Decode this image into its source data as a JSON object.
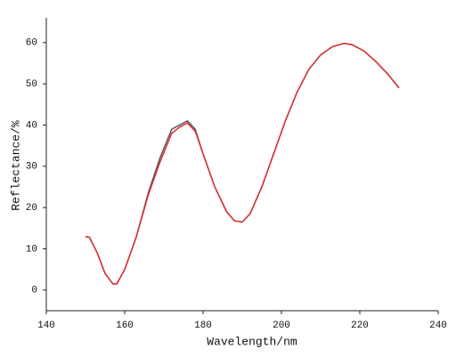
{
  "chart_data": {
    "type": "line",
    "xlabel": "Wavelength/nm",
    "ylabel": "Reflectance/%",
    "x": [
      150,
      151,
      153,
      155,
      157,
      158,
      160,
      163,
      166,
      169,
      172,
      174,
      176,
      178,
      180,
      183,
      186,
      188,
      190,
      192,
      195,
      198,
      201,
      204,
      207,
      210,
      213,
      216,
      218,
      221,
      224,
      227,
      230
    ],
    "series": [
      {
        "color": "#555555",
        "values": [
          13,
          12.8,
          9,
          4,
          1.5,
          1.5,
          5,
          13,
          23.5,
          32,
          39,
          40,
          41,
          39,
          33,
          25,
          19,
          16.8,
          16.5,
          18.5,
          25,
          33,
          41,
          48,
          53.5,
          57,
          59,
          59.8,
          59.5,
          58,
          55.5,
          52.5,
          49
        ]
      },
      {
        "color": "#e03030",
        "values": [
          13,
          12.8,
          9,
          4,
          1.5,
          1.5,
          5,
          13,
          23,
          31,
          38,
          39.5,
          40.5,
          38.5,
          33,
          25,
          19,
          16.8,
          16.5,
          18.5,
          25,
          33,
          41,
          48,
          53.5,
          57,
          59,
          59.8,
          59.5,
          58,
          55.5,
          52.5,
          49
        ]
      }
    ],
    "xlim": [
      140,
      240
    ],
    "xticks": [
      140,
      160,
      180,
      200,
      220,
      240
    ],
    "ylim": [
      -5,
      66
    ],
    "yticks": [
      0,
      10,
      20,
      30,
      40,
      50,
      60
    ]
  }
}
